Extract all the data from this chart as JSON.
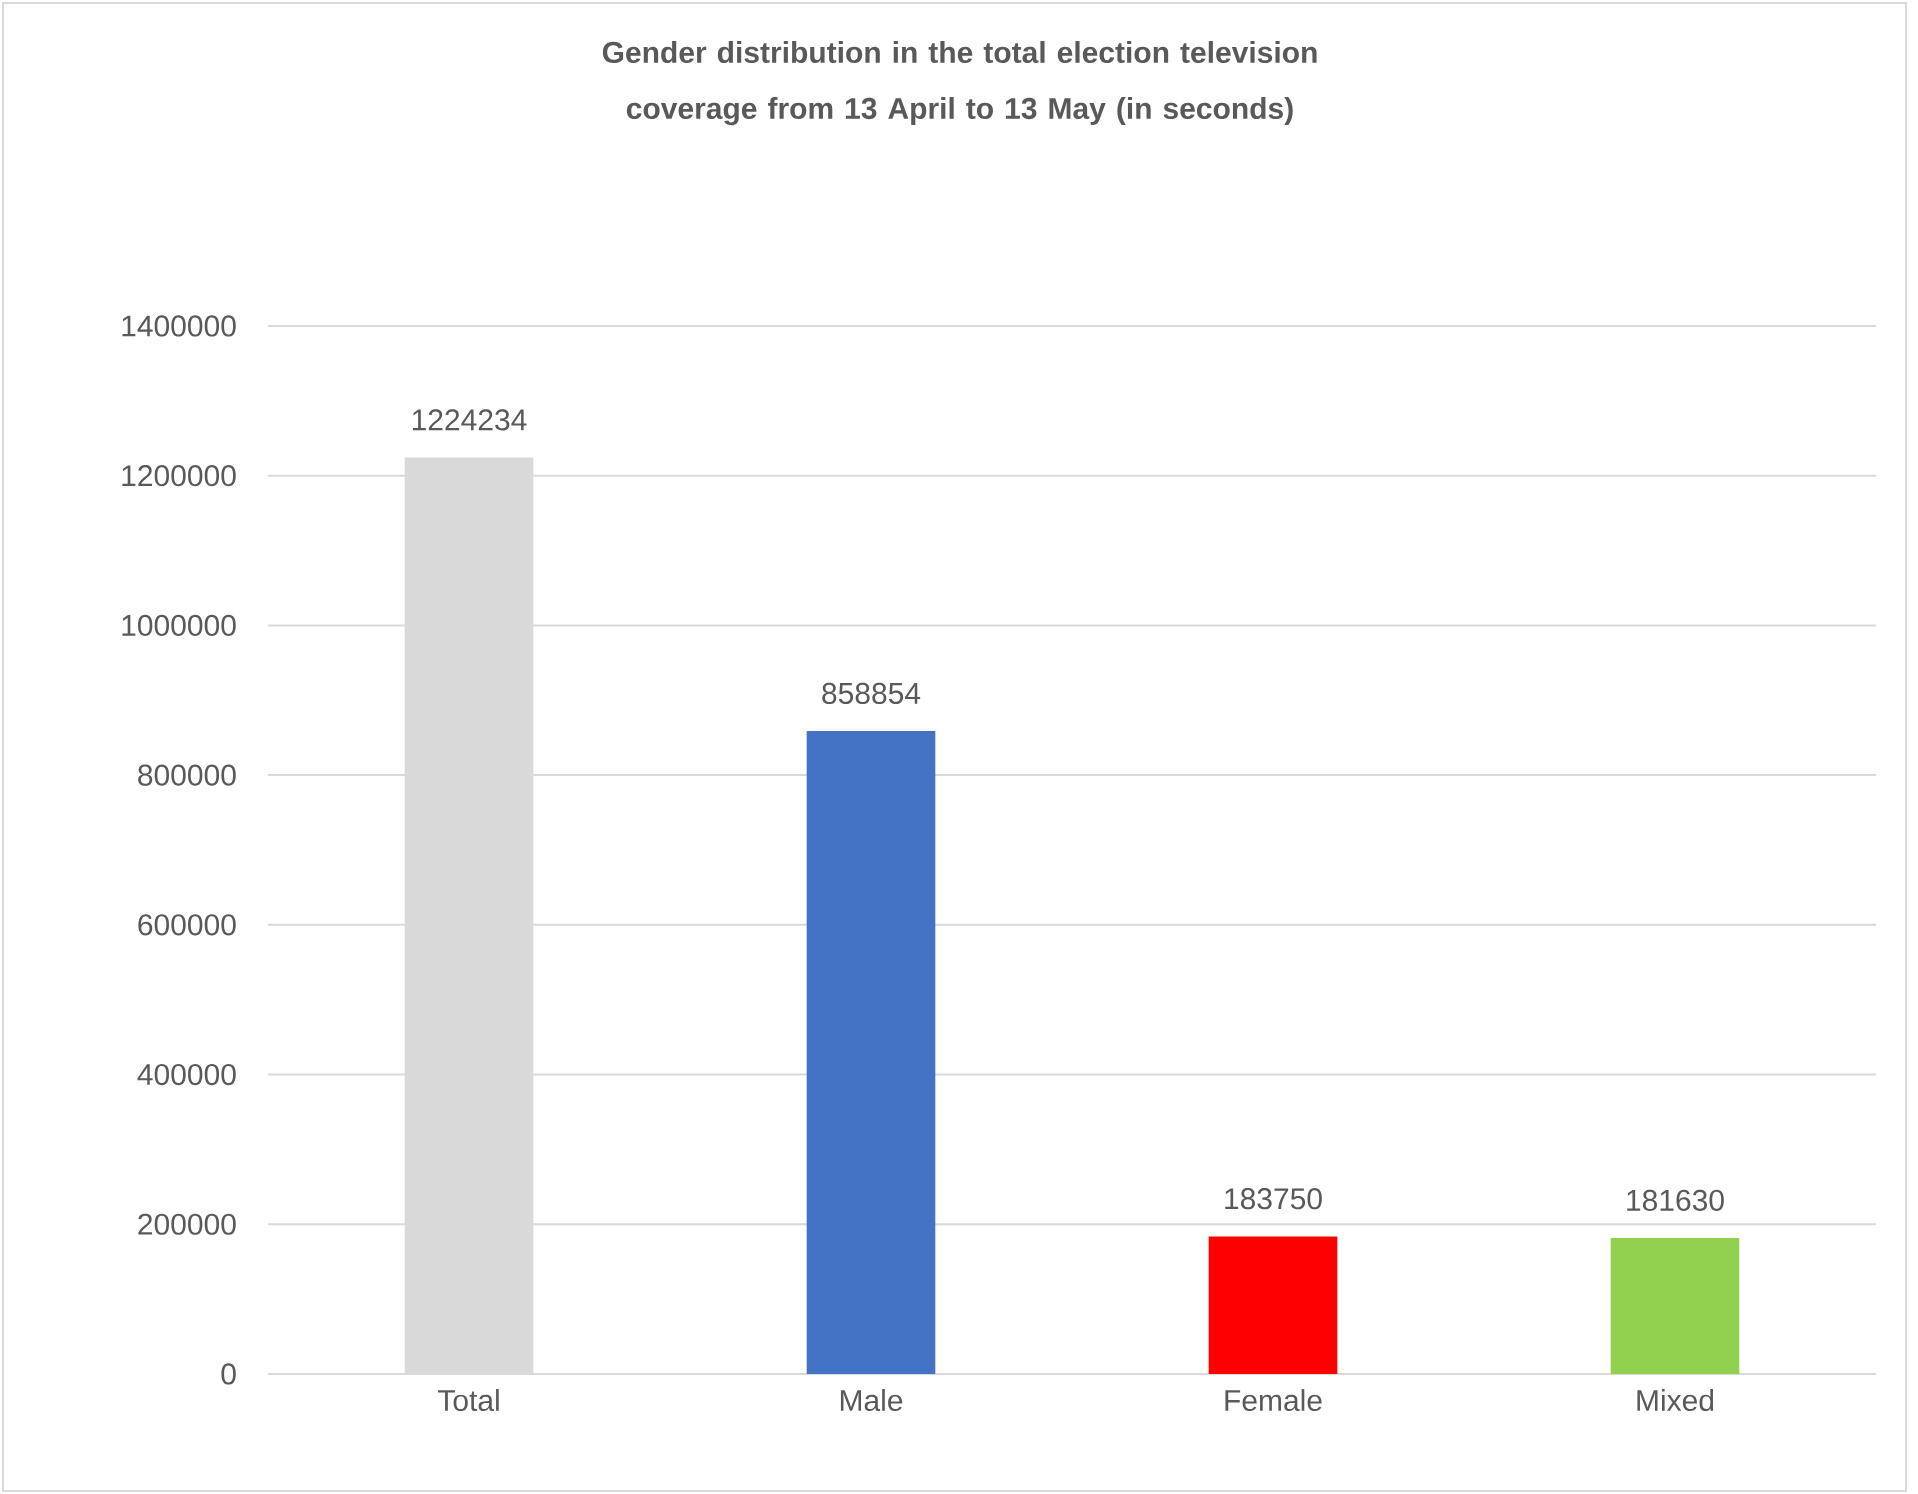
{
  "chart_data": {
    "type": "bar",
    "title": "Gender distribution in the total election television coverage from 13 April to 13 May (in seconds)",
    "categories": [
      "Total",
      "Male",
      "Female",
      "Mixed"
    ],
    "values": [
      1224234,
      858854,
      183750,
      181630
    ],
    "colors": [
      "#d9d9d9",
      "#4472c4",
      "#ff0000",
      "#92d050"
    ],
    "ylim": [
      0,
      1400000
    ],
    "yticks": [
      0,
      200000,
      400000,
      600000,
      800000,
      1000000,
      1200000,
      1400000
    ],
    "grid": "y",
    "data_labels": true
  }
}
